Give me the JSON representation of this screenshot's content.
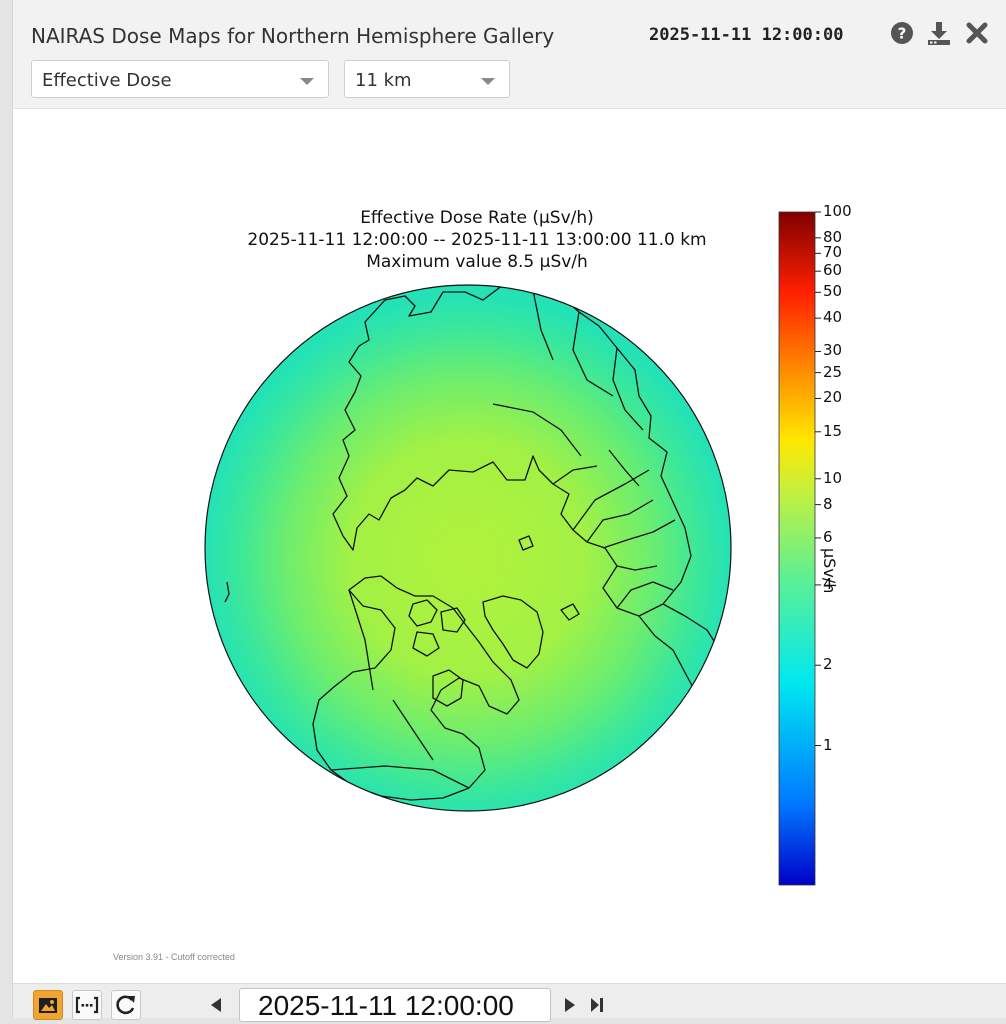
{
  "header": {
    "title": "NAIRAS Dose Maps for Northern Hemisphere Gallery",
    "timestamp": "2025-11-11 12:00:00",
    "icons": [
      "help-icon",
      "download-icon",
      "close-icon"
    ]
  },
  "controls": {
    "quantity": {
      "selected": "Effective Dose"
    },
    "altitude": {
      "selected": "11 km"
    }
  },
  "chart": {
    "title_line1": "Effective Dose Rate (μSv/h)",
    "title_line2": "2025-11-11 12:00:00 -- 2025-11-11 13:00:00 11.0 km",
    "title_line3": "Maximum value 8.5 μSv/h",
    "colorbar_label": "μSv/h"
  },
  "chart_data": {
    "type": "heatmap",
    "projection": "orthographic-north-polar",
    "max_value": 8.5,
    "colorbar": {
      "scale": "log",
      "range": [
        0.3,
        100
      ],
      "ticks": [
        100,
        80,
        70,
        60,
        50,
        40,
        30,
        25,
        20,
        15,
        10,
        8,
        6,
        4,
        2,
        1
      ],
      "tick_labels": [
        "100",
        "80",
        "70",
        "60",
        "50",
        "40",
        "30",
        "25",
        "20",
        "15",
        "10",
        "8",
        "6",
        "4",
        "2",
        "1"
      ],
      "colormap": "jet"
    }
  },
  "version_text": "Version 3.91 - Cutoff corrected",
  "footer": {
    "date_value": "2025-11-11 12:00:00"
  },
  "colors": {
    "accent": "#f0a431",
    "header_bg": "#f2f2f2"
  }
}
